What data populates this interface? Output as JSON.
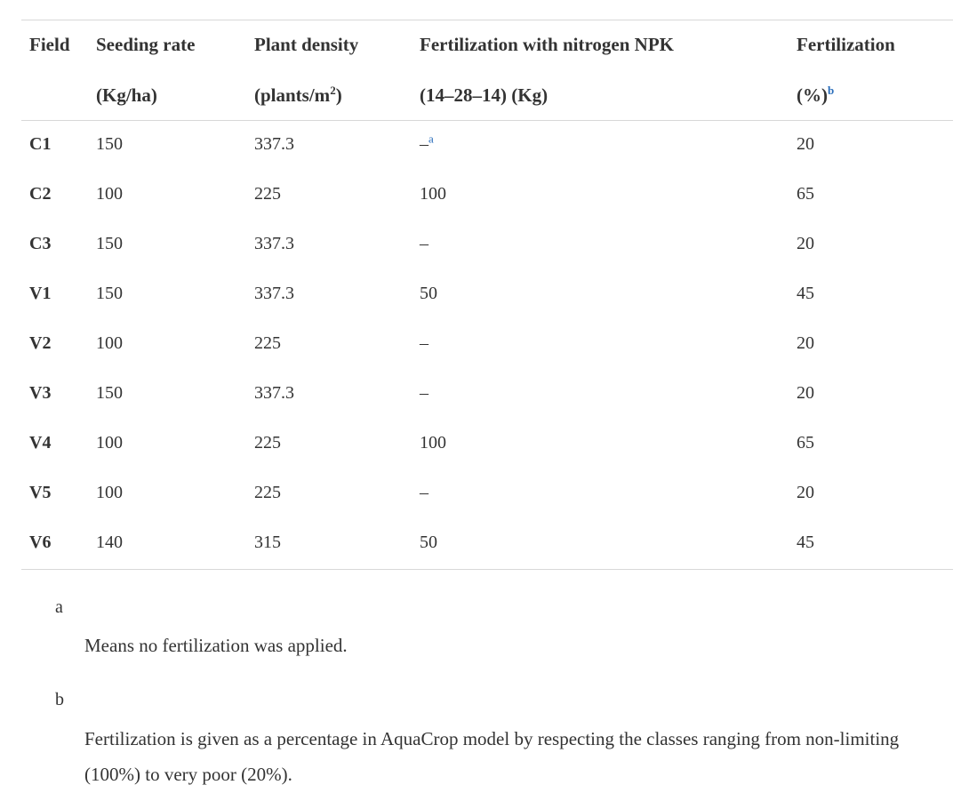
{
  "table": {
    "headers": [
      {
        "line1": "Field",
        "line2": ""
      },
      {
        "line1": "Seeding rate",
        "line2": "(Kg/ha)"
      },
      {
        "line1": "Plant density",
        "line2_pre": "(plants/m",
        "line2_sup": "2",
        "line2_post": ")"
      },
      {
        "line1": "Fertilization with nitrogen NPK",
        "line2": "(14–28–14) (Kg)"
      },
      {
        "line1": "Fertilization",
        "line2": "(%)",
        "footnote": "b"
      }
    ],
    "rows": [
      {
        "field": "C1",
        "seeding": "150",
        "density": "337.3",
        "npk": "–",
        "npk_footnote": "a",
        "fert": "20"
      },
      {
        "field": "C2",
        "seeding": "100",
        "density": "225",
        "npk": "100",
        "npk_footnote": "",
        "fert": "65"
      },
      {
        "field": "C3",
        "seeding": "150",
        "density": "337.3",
        "npk": "–",
        "npk_footnote": "",
        "fert": "20"
      },
      {
        "field": "V1",
        "seeding": "150",
        "density": "337.3",
        "npk": "50",
        "npk_footnote": "",
        "fert": "45"
      },
      {
        "field": "V2",
        "seeding": "100",
        "density": "225",
        "npk": "–",
        "npk_footnote": "",
        "fert": "20"
      },
      {
        "field": "V3",
        "seeding": "150",
        "density": "337.3",
        "npk": "–",
        "npk_footnote": "",
        "fert": "20"
      },
      {
        "field": "V4",
        "seeding": "100",
        "density": "225",
        "npk": "100",
        "npk_footnote": "",
        "fert": "65"
      },
      {
        "field": "V5",
        "seeding": "100",
        "density": "225",
        "npk": "–",
        "npk_footnote": "",
        "fert": "20"
      },
      {
        "field": "V6",
        "seeding": "140",
        "density": "315",
        "npk": "50",
        "npk_footnote": "",
        "fert": "45"
      }
    ]
  },
  "footnotes": [
    {
      "label": "a",
      "text": "Means no fertilization was applied."
    },
    {
      "label": "b",
      "text": "Fertilization is given as a percentage in AquaCrop model by respecting the classes ranging from non-limiting (100%) to very poor (20%)."
    }
  ],
  "colors": {
    "link": "#2a6ebb",
    "text": "#333333",
    "rule": "#d8d8d8"
  }
}
